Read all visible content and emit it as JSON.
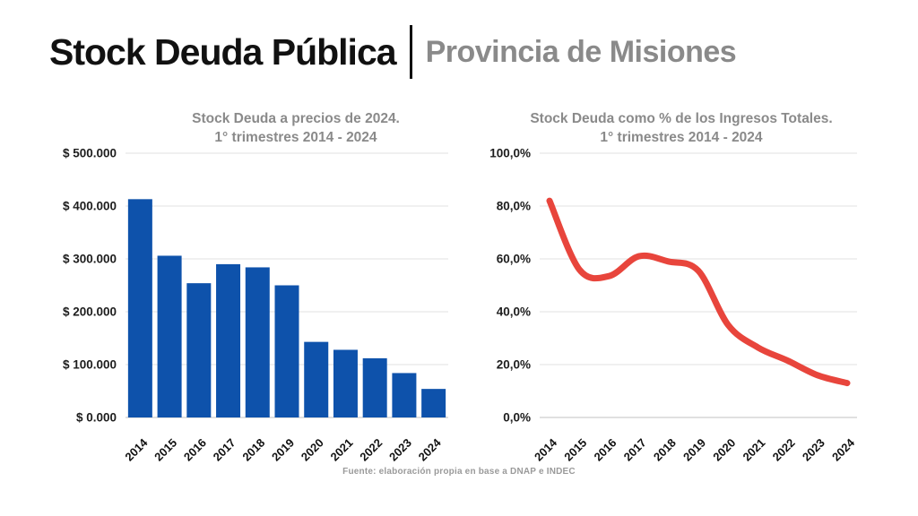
{
  "header": {
    "title": "Stock Deuda Pública",
    "subtitle": "Provincia de Misiones"
  },
  "footer": {
    "source": "Fuente: elaboración propia en base a DNAP e INDEC"
  },
  "colors": {
    "bar_blue": "#0E52AB",
    "line_red": "#E8453C",
    "title_black": "#111111",
    "subtitle_gray": "#8A8A8A",
    "chart_title_gray": "#8A8A8A",
    "axis_label": "#1D1D1D",
    "gridline": "#E0E0E0",
    "axis_line": "#C2C2C2",
    "source_gray": "#9A9A9A",
    "background": "#FFFFFF"
  },
  "chart_data": [
    {
      "type": "bar",
      "title": "Stock Deuda a precios de 2024.",
      "subtitle": "1° trimestres 2014 - 2024",
      "categories": [
        "2014",
        "2015",
        "2016",
        "2017",
        "2018",
        "2019",
        "2020",
        "2021",
        "2022",
        "2023",
        "2024"
      ],
      "values": [
        413000,
        306000,
        254000,
        290000,
        284000,
        250000,
        143000,
        128000,
        112000,
        84000,
        54000
      ],
      "ylim": [
        0,
        500000
      ],
      "yticks": [
        0,
        100000,
        200000,
        300000,
        400000,
        500000
      ],
      "ytick_labels": [
        "$ 0.000",
        "$ 100.000",
        "$ 200.000",
        "$ 300.000",
        "$ 400.000",
        "$ 500.000"
      ],
      "xlabel": "",
      "ylabel": "",
      "grid": true,
      "legend": false
    },
    {
      "type": "line",
      "title": "Stock Deuda como % de los Ingresos Totales.",
      "subtitle": "1° trimestres 2014 - 2024",
      "categories": [
        "2014",
        "2015",
        "2016",
        "2017",
        "2018",
        "2019",
        "2020",
        "2021",
        "2022",
        "2023",
        "2024"
      ],
      "values": [
        82,
        56,
        53.5,
        61,
        59,
        55.5,
        35,
        26.5,
        21.5,
        16,
        13
      ],
      "ylim": [
        0,
        100
      ],
      "yticks": [
        0,
        20,
        40,
        60,
        80,
        100
      ],
      "ytick_labels": [
        "0,0%",
        "20,0%",
        "40,0%",
        "60,0%",
        "80,0%",
        "100,0%"
      ],
      "xlabel": "",
      "ylabel": "",
      "grid": true,
      "legend": false
    }
  ]
}
